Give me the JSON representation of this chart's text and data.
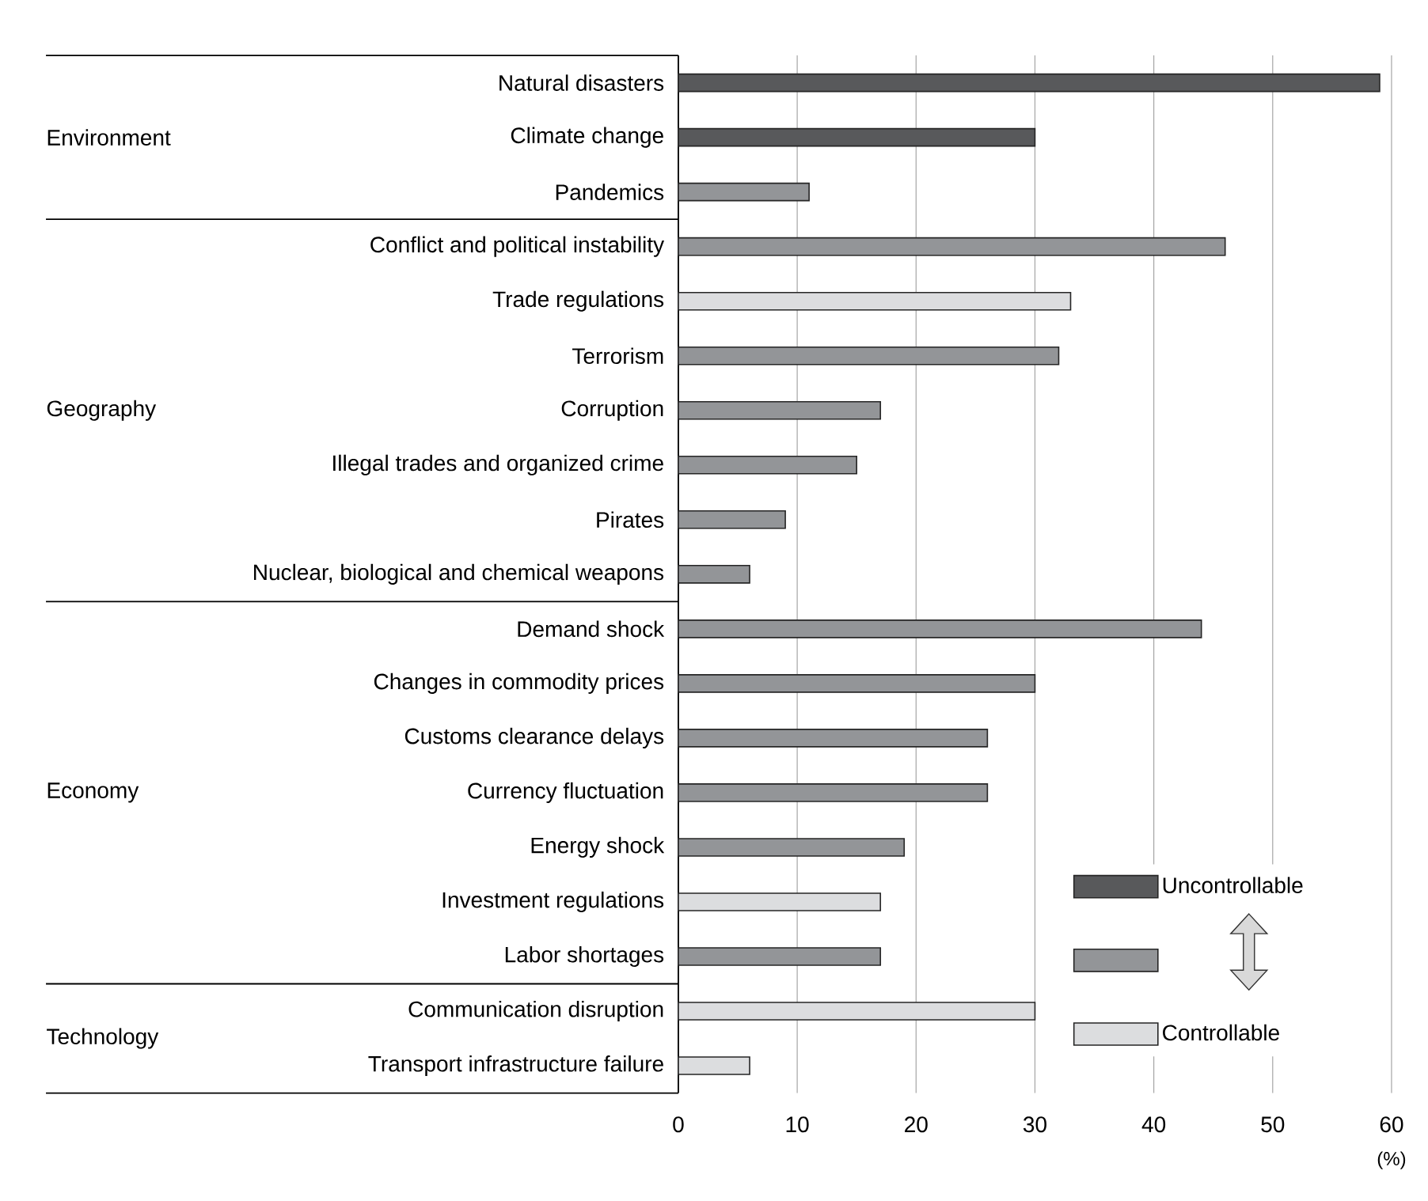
{
  "chart_data": {
    "type": "bar",
    "orientation": "horizontal",
    "categories": [
      "Natural disasters",
      "Climate change",
      "Pandemics",
      "Conflict and political instability",
      "Trade regulations",
      "Terrorism",
      "Corruption",
      "Illegal trades and organized crime",
      "Pirates",
      "Nuclear, biological and chemical weapons",
      "Demand shock",
      "Changes in commodity prices",
      "Customs clearance delays",
      "Currency fluctuation",
      "Energy shock",
      "Investment regulations",
      "Labor shortages",
      "Communication disruption",
      "Transport infrastructure failure"
    ],
    "series": [
      {
        "name": "Uncontrollable",
        "color": "#58595b",
        "values": [
          59,
          30,
          null,
          null,
          null,
          null,
          null,
          null,
          null,
          null,
          null,
          null,
          null,
          null,
          null,
          null,
          null,
          null,
          null
        ]
      },
      {
        "color": "#939598",
        "values": [
          null,
          null,
          11,
          46,
          null,
          32,
          17,
          15,
          9,
          6,
          44,
          30,
          26,
          26,
          19,
          null,
          17,
          null,
          null
        ]
      },
      {
        "name": "Controllable",
        "color": "#dcdddf",
        "values": [
          null,
          null,
          null,
          null,
          33,
          null,
          null,
          null,
          null,
          null,
          null,
          null,
          null,
          null,
          null,
          17,
          null,
          30,
          6
        ]
      }
    ],
    "xlim": [
      0,
      60
    ],
    "xticks": [
      0,
      10,
      20,
      30,
      40,
      50,
      60
    ],
    "xlabel": "(%)",
    "grid": "x",
    "legend": "bottom right",
    "annotations": [
      "Environment",
      "Geography",
      "Economy",
      "Technology"
    ]
  }
}
